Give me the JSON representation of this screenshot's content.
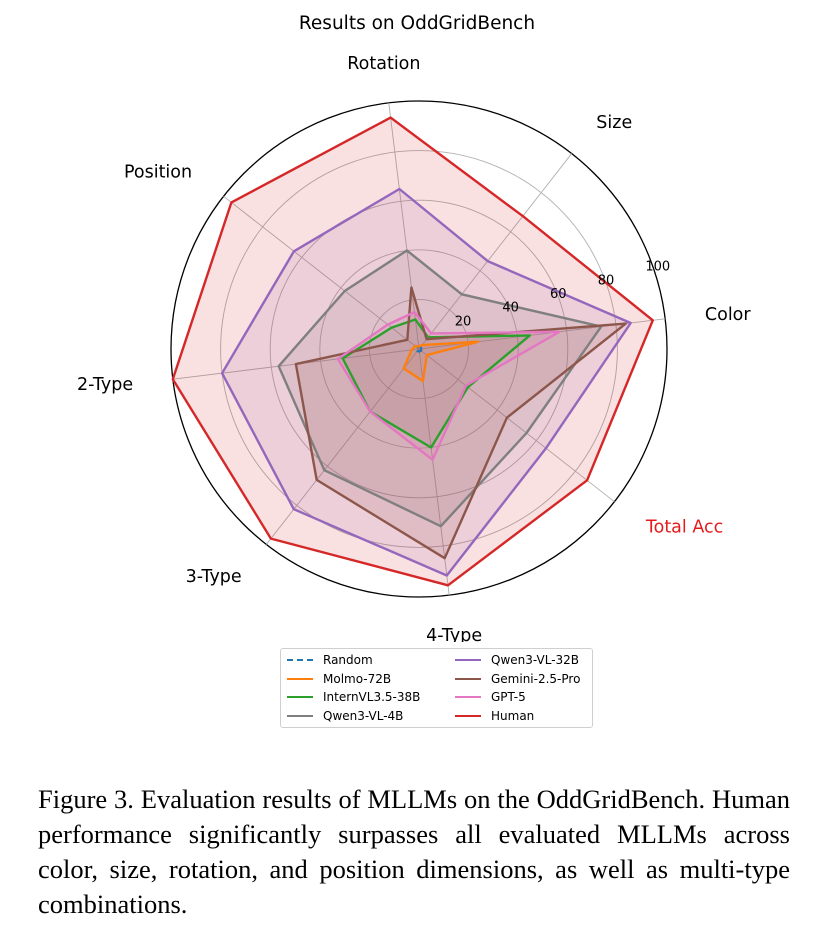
{
  "chart_data": {
    "type": "radar",
    "title": "Results on OddGridBench",
    "axes": [
      "Color",
      "Size",
      "Rotation",
      "Position",
      "2-Type",
      "3-Type",
      "4-Type",
      "Total Acc"
    ],
    "highlight_axis": "Total Acc",
    "radial_ticks": [
      "20",
      "40",
      "60",
      "80",
      "100"
    ],
    "rmax": 100,
    "grid": true,
    "legend_position": "bottom-center",
    "series": [
      {
        "name": "Random",
        "color": "#1f77b4",
        "dashed": true,
        "values": [
          1,
          1,
          1,
          1,
          1,
          1,
          1,
          1
        ]
      },
      {
        "name": "Molmo-72B",
        "color": "#ff7f0e",
        "dashed": false,
        "values": [
          24,
          2,
          1,
          2,
          3,
          10,
          13,
          4
        ]
      },
      {
        "name": "InternVL3.5-38B",
        "color": "#2ca02c",
        "dashed": false,
        "values": [
          45,
          6,
          12,
          14,
          31,
          32,
          40,
          25
        ]
      },
      {
        "name": "Qwen3-VL-4B",
        "color": "#7f7f7f",
        "dashed": false,
        "values": [
          74,
          28,
          40,
          38,
          57,
          62,
          72,
          55
        ]
      },
      {
        "name": "Qwen3-VL-32B",
        "color": "#9467bd",
        "dashed": false,
        "values": [
          86,
          45,
          65,
          64,
          80,
          82,
          92,
          65
        ]
      },
      {
        "name": "Gemini-2.5-Pro",
        "color": "#8c564b",
        "dashed": false,
        "values": [
          84,
          5,
          25,
          6,
          50,
          67,
          85,
          45
        ]
      },
      {
        "name": "GPT-5",
        "color": "#e377c2",
        "dashed": false,
        "values": [
          57,
          8,
          15,
          16,
          33,
          32,
          45,
          24
        ]
      },
      {
        "name": "Human",
        "color": "#d62728",
        "dashed": false,
        "values": [
          95,
          68,
          94,
          96,
          100,
          97,
          96,
          86
        ]
      }
    ]
  },
  "caption": "Figure 3.  Evaluation results of MLLMs on the OddGridBench. Human performance significantly surpasses all evaluated MLLMs across color, size, rotation, and position dimensions, as well as multi-type combinations."
}
